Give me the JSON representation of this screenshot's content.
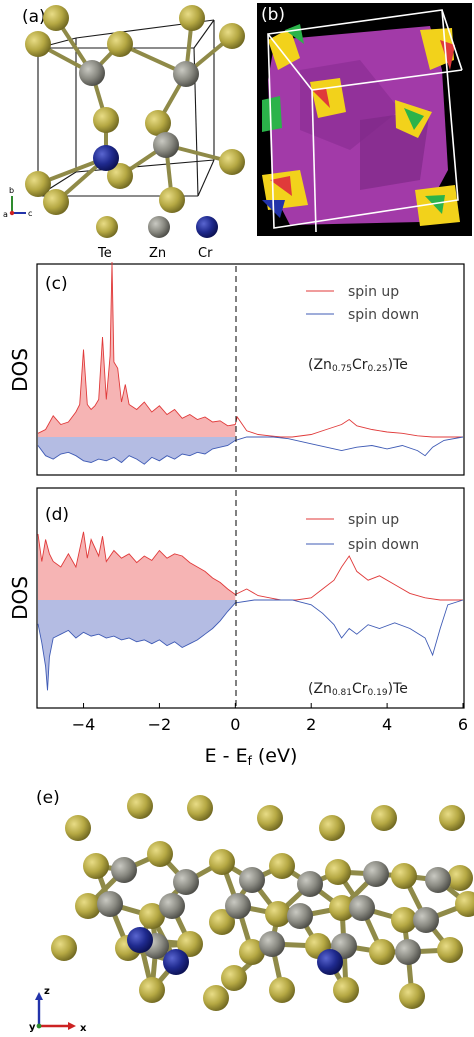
{
  "panel_labels": {
    "a": "(a)",
    "b": "(b)",
    "c": "(c)",
    "d": "(d)",
    "e": "(e)"
  },
  "legend_atoms": {
    "te": "Te",
    "zn": "Zn",
    "cr": "Cr"
  },
  "axes_a": {
    "b": "b",
    "a": "a",
    "c": "c"
  },
  "axes_e": {
    "z": "z",
    "y": "y",
    "x": "x"
  },
  "colors": {
    "te": "#b5a843",
    "zn": "#8a8a82",
    "cr": "#1f2a8e",
    "bond": "#8f8a48",
    "spin_up": "#e03a3a",
    "spin_up_fill": "#f6b4b4",
    "spin_down": "#3f5bb5",
    "spin_down_fill": "#b4bce3",
    "fermi_surface": "#a23aa8"
  },
  "chart_data": [
    {
      "type": "area",
      "panel": "(c)",
      "ylabel": "DOS",
      "xlabel": "",
      "xlim": [
        -5.2,
        6
      ],
      "series": [
        {
          "name": "spin up",
          "x": [
            -5.2,
            -5.0,
            -4.8,
            -4.6,
            -4.4,
            -4.2,
            -4.1,
            -4.0,
            -3.9,
            -3.8,
            -3.7,
            -3.6,
            -3.5,
            -3.4,
            -3.3,
            -3.25,
            -3.2,
            -3.1,
            -3.0,
            -2.9,
            -2.8,
            -2.6,
            -2.4,
            -2.2,
            -2.0,
            -1.8,
            -1.6,
            -1.4,
            -1.2,
            -1.0,
            -0.8,
            -0.6,
            -0.4,
            -0.2,
            0.0,
            0.05,
            0.3,
            0.6,
            0.9,
            1.2,
            1.5,
            2.0,
            2.4,
            2.8,
            3.0,
            3.2,
            3.6,
            4.0,
            4.4,
            4.8,
            5.2,
            5.6,
            6.0
          ],
          "values": [
            0.03,
            0.06,
            0.17,
            0.1,
            0.12,
            0.2,
            0.26,
            0.7,
            0.26,
            0.22,
            0.25,
            0.3,
            0.8,
            0.3,
            0.65,
            1.4,
            0.6,
            0.55,
            0.28,
            0.42,
            0.26,
            0.22,
            0.28,
            0.2,
            0.25,
            0.18,
            0.22,
            0.15,
            0.18,
            0.14,
            0.16,
            0.12,
            0.13,
            0.09,
            0.1,
            0.16,
            0.05,
            0.02,
            0.01,
            0.0,
            0.0,
            0.02,
            0.06,
            0.1,
            0.14,
            0.09,
            0.06,
            0.04,
            0.03,
            0.01,
            0.0,
            0.0,
            0.0
          ]
        },
        {
          "name": "spin down",
          "x": [
            -5.2,
            -5.0,
            -4.8,
            -4.6,
            -4.4,
            -4.2,
            -4.0,
            -3.8,
            -3.6,
            -3.4,
            -3.2,
            -3.0,
            -2.8,
            -2.6,
            -2.4,
            -2.2,
            -2.0,
            -1.8,
            -1.6,
            -1.4,
            -1.2,
            -1.0,
            -0.8,
            -0.6,
            -0.4,
            -0.2,
            0.0,
            0.3,
            0.6,
            1.0,
            1.4,
            2.0,
            2.4,
            2.8,
            3.2,
            3.6,
            4.0,
            4.4,
            4.8,
            5.0,
            5.2,
            5.5,
            6.0
          ],
          "values": [
            0.1,
            0.22,
            0.26,
            0.2,
            0.18,
            0.22,
            0.28,
            0.3,
            0.26,
            0.28,
            0.24,
            0.3,
            0.22,
            0.26,
            0.32,
            0.24,
            0.28,
            0.22,
            0.26,
            0.2,
            0.22,
            0.18,
            0.2,
            0.14,
            0.12,
            0.1,
            0.04,
            0.0,
            0.0,
            0.0,
            0.02,
            0.08,
            0.12,
            0.16,
            0.12,
            0.1,
            0.14,
            0.1,
            0.16,
            0.22,
            0.12,
            0.04,
            0.0
          ]
        }
      ],
      "annotations": [
        {
          "text": "(Zn",
          "sub1": "0.75",
          "mid": "Cr",
          "sub2": "0.25",
          "end": ")Te"
        }
      ]
    },
    {
      "type": "area",
      "panel": "(d)",
      "ylabel": "DOS",
      "xlabel": "E - E",
      "xlabel_sub": "f",
      "xlabel_end": " (eV)",
      "xlim": [
        -5.2,
        6
      ],
      "xticks": [
        -4,
        -2,
        0,
        2,
        4,
        6
      ],
      "series": [
        {
          "name": "spin up",
          "x": [
            -5.2,
            -5.1,
            -5.0,
            -4.9,
            -4.8,
            -4.6,
            -4.4,
            -4.2,
            -4.0,
            -3.9,
            -3.8,
            -3.6,
            -3.5,
            -3.4,
            -3.2,
            -3.0,
            -2.8,
            -2.6,
            -2.4,
            -2.2,
            -2.0,
            -1.8,
            -1.6,
            -1.4,
            -1.2,
            -1.0,
            -0.8,
            -0.6,
            -0.4,
            -0.2,
            0.0,
            0.3,
            0.6,
            0.9,
            1.2,
            1.6,
            2.0,
            2.3,
            2.6,
            2.8,
            3.0,
            3.2,
            3.5,
            3.8,
            4.2,
            4.6,
            5.0,
            5.4,
            6.0
          ],
          "values": [
            0.6,
            0.35,
            0.55,
            0.42,
            0.35,
            0.3,
            0.42,
            0.3,
            0.62,
            0.38,
            0.55,
            0.4,
            0.58,
            0.35,
            0.45,
            0.38,
            0.42,
            0.34,
            0.4,
            0.36,
            0.45,
            0.38,
            0.42,
            0.4,
            0.34,
            0.3,
            0.26,
            0.2,
            0.16,
            0.1,
            0.05,
            0.1,
            0.04,
            0.02,
            0.0,
            0.0,
            0.02,
            0.1,
            0.18,
            0.3,
            0.4,
            0.26,
            0.18,
            0.22,
            0.14,
            0.06,
            0.02,
            0.0,
            0.0
          ]
        },
        {
          "name": "spin down",
          "x": [
            -5.2,
            -5.1,
            -5.0,
            -4.95,
            -4.9,
            -4.8,
            -4.6,
            -4.4,
            -4.2,
            -4.0,
            -3.8,
            -3.6,
            -3.4,
            -3.2,
            -3.0,
            -2.8,
            -2.6,
            -2.4,
            -2.2,
            -2.0,
            -1.8,
            -1.6,
            -1.4,
            -1.2,
            -1.0,
            -0.8,
            -0.6,
            -0.4,
            -0.2,
            0.0,
            0.5,
            1.0,
            1.5,
            2.0,
            2.3,
            2.6,
            2.8,
            3.0,
            3.2,
            3.5,
            3.8,
            4.2,
            4.6,
            5.0,
            5.2,
            5.4,
            5.6,
            6.0
          ],
          "values": [
            0.25,
            0.45,
            0.7,
            0.95,
            0.6,
            0.4,
            0.36,
            0.32,
            0.4,
            0.34,
            0.38,
            0.36,
            0.4,
            0.38,
            0.42,
            0.4,
            0.44,
            0.42,
            0.46,
            0.42,
            0.48,
            0.44,
            0.5,
            0.46,
            0.42,
            0.36,
            0.3,
            0.22,
            0.12,
            0.03,
            0.0,
            0.0,
            0.0,
            0.05,
            0.14,
            0.26,
            0.4,
            0.3,
            0.36,
            0.26,
            0.3,
            0.24,
            0.3,
            0.4,
            0.58,
            0.3,
            0.05,
            0.0
          ]
        }
      ],
      "annotations": [
        {
          "text": "(Zn",
          "sub1": "0.81",
          "mid": "Cr",
          "sub2": "0.19",
          "end": ")Te"
        }
      ]
    }
  ]
}
